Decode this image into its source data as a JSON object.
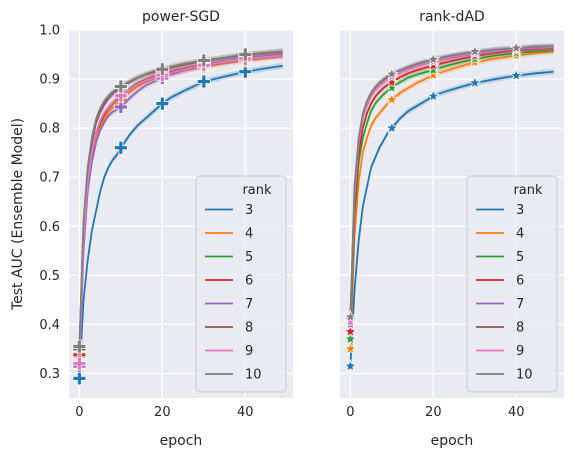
{
  "chart_data": [
    {
      "type": "line",
      "title": "power-SGD",
      "xlabel": "epoch",
      "ylabel": "Test AUC (Ensemble Model)",
      "xlim": [
        -2.5,
        51.5
      ],
      "ylim": [
        0.25,
        1.0
      ],
      "xticks": [
        "0",
        "20",
        "40"
      ],
      "yticks": [
        "0.3",
        "0.4",
        "0.5",
        "0.6",
        "0.7",
        "0.8",
        "0.9",
        "1.0"
      ],
      "marker": "plus",
      "grid": true,
      "legend_title": "rank",
      "legend_position": "lower right",
      "x": [
        0,
        1,
        2,
        3,
        4,
        5,
        6,
        7,
        8,
        9,
        10,
        12,
        14,
        16,
        18,
        20,
        22,
        25,
        30,
        35,
        40,
        45,
        49
      ],
      "series": [
        {
          "name": "3",
          "color": "#1f77b4",
          "values": [
            0.29,
            0.45,
            0.53,
            0.59,
            0.63,
            0.67,
            0.7,
            0.72,
            0.735,
            0.745,
            0.76,
            0.785,
            0.805,
            0.82,
            0.835,
            0.85,
            0.862,
            0.875,
            0.895,
            0.905,
            0.915,
            0.922,
            0.927
          ]
        },
        {
          "name": "4",
          "color": "#ff7f0e",
          "values": [
            0.335,
            0.57,
            0.68,
            0.74,
            0.78,
            0.8,
            0.82,
            0.832,
            0.842,
            0.85,
            0.858,
            0.872,
            0.885,
            0.894,
            0.9,
            0.905,
            0.91,
            0.917,
            0.925,
            0.932,
            0.938,
            0.943,
            0.946
          ]
        },
        {
          "name": "5",
          "color": "#2ca02c",
          "values": [
            0.34,
            0.58,
            0.69,
            0.75,
            0.79,
            0.81,
            0.828,
            0.84,
            0.85,
            0.858,
            0.866,
            0.879,
            0.891,
            0.899,
            0.905,
            0.91,
            0.915,
            0.921,
            0.929,
            0.936,
            0.942,
            0.946,
            0.949
          ]
        },
        {
          "name": "6",
          "color": "#d62728",
          "values": [
            0.338,
            0.58,
            0.69,
            0.75,
            0.79,
            0.81,
            0.828,
            0.84,
            0.85,
            0.858,
            0.865,
            0.878,
            0.89,
            0.898,
            0.905,
            0.91,
            0.915,
            0.921,
            0.929,
            0.936,
            0.942,
            0.946,
            0.949
          ]
        },
        {
          "name": "7",
          "color": "#9467bd",
          "values": [
            0.315,
            0.55,
            0.67,
            0.73,
            0.77,
            0.795,
            0.812,
            0.825,
            0.833,
            0.838,
            0.843,
            0.86,
            0.875,
            0.887,
            0.895,
            0.902,
            0.909,
            0.917,
            0.928,
            0.936,
            0.943,
            0.948,
            0.951
          ]
        },
        {
          "name": "8",
          "color": "#8c564b",
          "values": [
            0.35,
            0.6,
            0.71,
            0.77,
            0.81,
            0.832,
            0.848,
            0.86,
            0.869,
            0.876,
            0.882,
            0.893,
            0.902,
            0.909,
            0.914,
            0.918,
            0.923,
            0.929,
            0.937,
            0.943,
            0.949,
            0.953,
            0.956
          ]
        },
        {
          "name": "9",
          "color": "#e377c2",
          "values": [
            0.32,
            0.57,
            0.69,
            0.75,
            0.79,
            0.815,
            0.832,
            0.843,
            0.852,
            0.86,
            0.866,
            0.878,
            0.889,
            0.897,
            0.903,
            0.908,
            0.913,
            0.919,
            0.928,
            0.935,
            0.941,
            0.945,
            0.948
          ]
        },
        {
          "name": "10",
          "color": "#7f7f7f",
          "values": [
            0.355,
            0.61,
            0.72,
            0.78,
            0.818,
            0.84,
            0.855,
            0.866,
            0.874,
            0.88,
            0.885,
            0.895,
            0.903,
            0.91,
            0.916,
            0.92,
            0.925,
            0.931,
            0.938,
            0.944,
            0.95,
            0.954,
            0.957
          ]
        }
      ]
    },
    {
      "type": "line",
      "title": "rank-dAD",
      "xlabel": "epoch",
      "ylabel": "",
      "xlim": [
        -2.5,
        51.5
      ],
      "ylim": [
        0.25,
        1.0
      ],
      "xticks": [
        "0",
        "20",
        "40"
      ],
      "marker": "star",
      "grid": true,
      "legend_title": "rank",
      "legend_position": "lower right",
      "x": [
        0,
        1,
        2,
        3,
        4,
        5,
        6,
        7,
        8,
        9,
        10,
        12,
        14,
        16,
        18,
        20,
        22,
        25,
        30,
        35,
        40,
        45,
        49
      ],
      "series": [
        {
          "name": "3",
          "color": "#1f77b4",
          "values": [
            0.315,
            0.47,
            0.57,
            0.64,
            0.68,
            0.72,
            0.74,
            0.76,
            0.775,
            0.79,
            0.8,
            0.82,
            0.835,
            0.845,
            0.855,
            0.865,
            0.872,
            0.88,
            0.892,
            0.9,
            0.907,
            0.912,
            0.915
          ]
        },
        {
          "name": "4",
          "color": "#ff7f0e",
          "values": [
            0.35,
            0.58,
            0.69,
            0.75,
            0.78,
            0.805,
            0.82,
            0.83,
            0.84,
            0.85,
            0.858,
            0.872,
            0.882,
            0.892,
            0.9,
            0.908,
            0.914,
            0.922,
            0.934,
            0.942,
            0.948,
            0.953,
            0.956
          ]
        },
        {
          "name": "5",
          "color": "#2ca02c",
          "values": [
            0.37,
            0.62,
            0.73,
            0.78,
            0.81,
            0.835,
            0.85,
            0.86,
            0.869,
            0.876,
            0.882,
            0.894,
            0.903,
            0.909,
            0.914,
            0.918,
            0.924,
            0.931,
            0.941,
            0.948,
            0.953,
            0.957,
            0.959
          ]
        },
        {
          "name": "6",
          "color": "#d62728",
          "values": [
            0.385,
            0.64,
            0.75,
            0.8,
            0.83,
            0.85,
            0.864,
            0.874,
            0.882,
            0.888,
            0.893,
            0.904,
            0.912,
            0.918,
            0.923,
            0.927,
            0.932,
            0.938,
            0.947,
            0.953,
            0.958,
            0.961,
            0.963
          ]
        },
        {
          "name": "7",
          "color": "#9467bd",
          "values": [
            0.4,
            0.66,
            0.77,
            0.82,
            0.846,
            0.865,
            0.878,
            0.887,
            0.894,
            0.9,
            0.905,
            0.914,
            0.921,
            0.927,
            0.932,
            0.936,
            0.94,
            0.945,
            0.952,
            0.957,
            0.961,
            0.964,
            0.965
          ]
        },
        {
          "name": "8",
          "color": "#8c564b",
          "values": [
            0.41,
            0.67,
            0.775,
            0.825,
            0.85,
            0.868,
            0.88,
            0.889,
            0.896,
            0.902,
            0.907,
            0.916,
            0.923,
            0.929,
            0.934,
            0.938,
            0.942,
            0.947,
            0.954,
            0.959,
            0.962,
            0.965,
            0.966
          ]
        },
        {
          "name": "9",
          "color": "#e377c2",
          "values": [
            0.405,
            0.665,
            0.77,
            0.822,
            0.848,
            0.866,
            0.878,
            0.887,
            0.894,
            0.9,
            0.905,
            0.914,
            0.921,
            0.927,
            0.932,
            0.936,
            0.94,
            0.946,
            0.953,
            0.958,
            0.962,
            0.964,
            0.965
          ]
        },
        {
          "name": "10",
          "color": "#7f7f7f",
          "values": [
            0.415,
            0.68,
            0.78,
            0.83,
            0.855,
            0.872,
            0.884,
            0.893,
            0.9,
            0.906,
            0.91,
            0.918,
            0.925,
            0.931,
            0.936,
            0.94,
            0.944,
            0.949,
            0.956,
            0.96,
            0.963,
            0.966,
            0.967
          ]
        }
      ]
    }
  ]
}
